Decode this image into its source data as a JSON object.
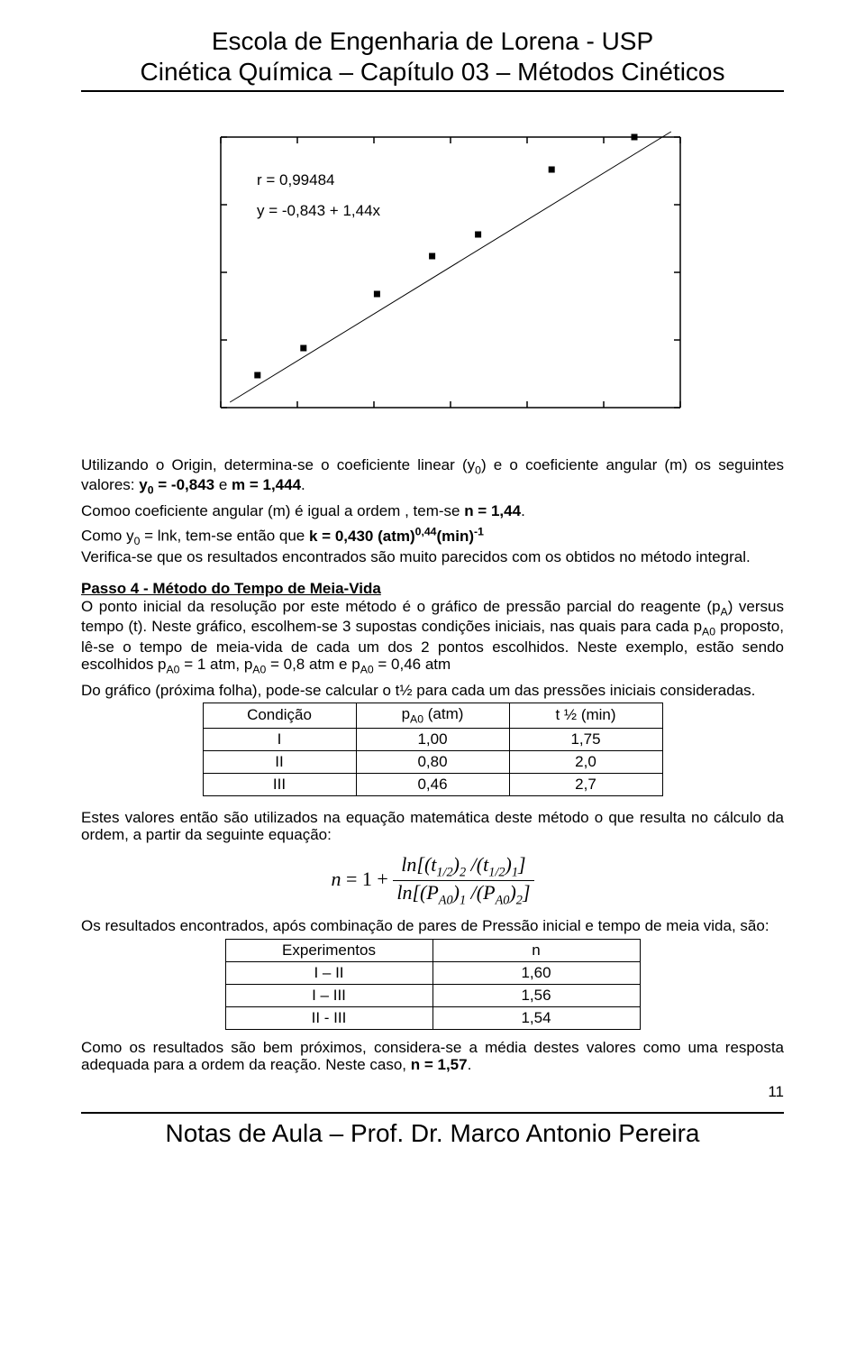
{
  "header": {
    "title": "Escola de Engenharia de Lorena - USP",
    "subtitle": "Cinética Química  –  Capítulo 03 – Métodos Cinéticos"
  },
  "chart": {
    "type": "scatter+line",
    "r_label": "r = 0,99484",
    "y_label": "y = -0,843 + 1,44x",
    "points": [
      {
        "x": 0.08,
        "y": 0.12
      },
      {
        "x": 0.18,
        "y": 0.22
      },
      {
        "x": 0.34,
        "y": 0.42
      },
      {
        "x": 0.46,
        "y": 0.56
      },
      {
        "x": 0.56,
        "y": 0.64
      },
      {
        "x": 0.72,
        "y": 0.88
      },
      {
        "x": 0.9,
        "y": 1.0
      }
    ],
    "line": {
      "x1": 0.02,
      "y1": 0.02,
      "x2": 0.98,
      "y2": 1.02
    },
    "xticks": 7,
    "yticks": 5,
    "marker_size": 7,
    "colors": {
      "axis": "#000000",
      "marker": "#000000",
      "line": "#000000",
      "background": "#ffffff"
    }
  },
  "body": {
    "p1a": "Utilizando o Origin, determina-se o coeficiente linear (y",
    "p1b": ") e o coeficiente angular (m) os seguintes valores: ",
    "p1c": "y",
    "p1d": " = -0,843",
    "p1e": "  e ",
    "p1f": "m = 1,444",
    "p1g": ".",
    "p2a": "Comoo coeficiente angular (m) é igual a ordem , tem-se ",
    "p2b": "n = 1,44",
    "p2c": ".",
    "p3a": "Como y",
    "p3b": " = lnk, tem-se então que ",
    "p3c": "k = 0,430 (atm)",
    "p3d": "0,44",
    "p3e": "(min)",
    "p3f": "-1",
    "p4": "Verifica-se que os resultados encontrados são muito parecidos com os  obtidos no método integral.",
    "step4_title": "Passo 4 - Método do Tempo de Meia-Vida",
    "p5a": "O ponto inicial da resolução por este método é o gráfico de pressão parcial do reagente (p",
    "p5b": ") versus tempo (t). Neste gráfico, escolhem-se 3 supostas condições iniciais, nas quais para cada p",
    "p5c": " proposto, lê-se o tempo de meia-vida de cada um dos 2 pontos escolhidos. Neste exemplo, estão sendo escolhidos p",
    "p5d": " = 1 atm, p",
    "p5e": " = 0,8 atm e p",
    "p5f": " = 0,46 atm",
    "p6": "Do gráfico (próxima folha), pode-se calcular o t½ para cada um das pressões iniciais consideradas.",
    "p7": "Estes valores então são utilizados na equação matemática deste método o que resulta no cálculo da ordem, a partir da seguinte equação:",
    "eq_n": "n",
    "eq_eq": " = 1 + ",
    "eq_num": "ln[(t₁/₂)₂ /(t₁/₂)₁]",
    "eq_den": "ln[(P_A0)₁ /(P_A0)₂]",
    "p8": "Os resultados encontrados, após combinação de pares de Pressão inicial e tempo de meia vida, são:",
    "p9a": "Como os resultados são bem próximos, considera-se a média destes valores como uma resposta adequada para a ordem da reação. Neste caso, ",
    "p9b": "n = 1,57",
    "p9c": "."
  },
  "table1": {
    "columns": [
      "Condição",
      "p_A0 (atm)",
      "t ½ (min)"
    ],
    "rows": [
      [
        "I",
        "1,00",
        "1,75"
      ],
      [
        "II",
        "0,80",
        "2,0"
      ],
      [
        "III",
        "0,46",
        "2,7"
      ]
    ]
  },
  "table2": {
    "columns": [
      "Experimentos",
      "n"
    ],
    "rows": [
      [
        "I – II",
        "1,60"
      ],
      [
        "I – III",
        "1,56"
      ],
      [
        "II - III",
        "1,54"
      ]
    ]
  },
  "page_num": "11",
  "footer": "Notas de Aula  –  Prof. Dr. Marco Antonio Pereira"
}
